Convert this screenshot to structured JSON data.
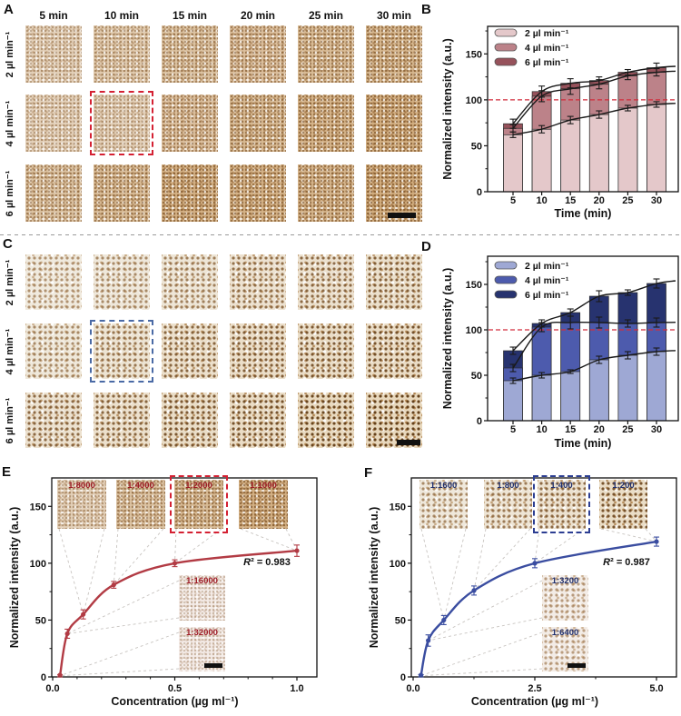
{
  "panels": {
    "a": "A",
    "b": "B",
    "c": "C",
    "d": "D",
    "e": "E",
    "f": "F"
  },
  "panel_a": {
    "col_headers": [
      "5 min",
      "10 min",
      "15 min",
      "20 min",
      "25 min",
      "30 min"
    ],
    "row_labels": [
      "2 µl min⁻¹",
      "4 µl min⁻¹",
      "6 µl min⁻¹"
    ],
    "tile_densities": [
      [
        0.3,
        0.38,
        0.5,
        0.55,
        0.6,
        0.68
      ],
      [
        0.28,
        0.3,
        0.55,
        0.65,
        0.72,
        0.8
      ],
      [
        0.5,
        0.6,
        0.78,
        0.75,
        0.7,
        0.82
      ]
    ],
    "highlight": {
      "row": 1,
      "col": 1,
      "color": "#d42133"
    },
    "texture": "fine"
  },
  "panel_c": {
    "col_headers": [],
    "row_labels": [
      "2 µl min⁻¹",
      "4 µl min⁻¹",
      "6 µl min⁻¹"
    ],
    "tile_densities": [
      [
        0.18,
        0.25,
        0.35,
        0.5,
        0.55,
        0.62
      ],
      [
        0.28,
        0.45,
        0.6,
        0.68,
        0.72,
        0.78
      ],
      [
        0.55,
        0.6,
        0.72,
        0.78,
        0.88,
        0.95
      ]
    ],
    "highlight": {
      "row": 1,
      "col": 1,
      "color": "#4a6aa5"
    },
    "texture": "dots"
  },
  "chart_data": [
    {
      "id": "B",
      "type": "bar",
      "categories": [
        "5",
        "10",
        "15",
        "20",
        "25",
        "30"
      ],
      "xlabel": "Time (min)",
      "ylabel": "Normalized intensity (a.u.)",
      "yticks": [
        "0",
        "50",
        "100",
        "150"
      ],
      "ytick_vals": [
        0,
        50,
        100,
        150
      ],
      "ylim": [
        0,
        180
      ],
      "ref_line": 100,
      "ref_color": "#d22c3c",
      "series": [
        {
          "name": "2 µl min⁻¹",
          "color": "#e4c8ca",
          "values": [
            62,
            68,
            78,
            84,
            91,
            95
          ],
          "errors": [
            3,
            4,
            4,
            4,
            3,
            3
          ]
        },
        {
          "name": "4 µl min⁻¹",
          "color": "#bc8289",
          "values": [
            69,
            104,
            112,
            117,
            126,
            130
          ],
          "errors": [
            4,
            6,
            6,
            5,
            4,
            4
          ]
        },
        {
          "name": "6 µl min⁻¹",
          "color": "#96525b",
          "values": [
            74,
            109,
            118,
            121,
            130,
            135
          ],
          "errors": [
            5,
            6,
            5,
            4,
            3,
            5
          ]
        }
      ],
      "legend_position": "top-left"
    },
    {
      "id": "D",
      "type": "bar",
      "categories": [
        "5",
        "10",
        "15",
        "20",
        "25",
        "30"
      ],
      "xlabel": "Time (min)",
      "ylabel": "Normalized intensity (a.u.)",
      "yticks": [
        "0",
        "50",
        "100",
        "150"
      ],
      "ytick_vals": [
        0,
        50,
        100,
        150
      ],
      "ylim": [
        0,
        181
      ],
      "ref_line": 100,
      "ref_color": "#d22c3c",
      "series": [
        {
          "name": "2 µl min⁻¹",
          "color": "#9ea8d4",
          "values": [
            44,
            50,
            54,
            67,
            72,
            76
          ],
          "errors": [
            3,
            3,
            2,
            4,
            4,
            4
          ]
        },
        {
          "name": "4 µl min⁻¹",
          "color": "#4d5bad",
          "values": [
            58,
            103,
            108,
            108,
            107,
            108
          ],
          "errors": [
            4,
            5,
            7,
            6,
            4,
            5
          ]
        },
        {
          "name": "6 µl min⁻¹",
          "color": "#27336f",
          "values": [
            77,
            107,
            119,
            137,
            141,
            151
          ],
          "errors": [
            4,
            4,
            4,
            6,
            3,
            5
          ]
        }
      ],
      "legend_position": "top-left"
    },
    {
      "id": "E",
      "type": "scatter",
      "x": [
        0.03,
        0.06,
        0.125,
        0.25,
        0.5,
        1.0
      ],
      "y": [
        1,
        38,
        55,
        81,
        100,
        111
      ],
      "errors": [
        1,
        4,
        4,
        3,
        3,
        5
      ],
      "color": "#b23b44",
      "r2": "R² = 0.983",
      "xlabel": "Concentration (µg ml⁻¹)",
      "ylabel": "Normalized intensity (a.u.)",
      "xticks": [
        "0.0",
        "0.5",
        "1.0"
      ],
      "xtick_vals": [
        0,
        0.5,
        1.0
      ],
      "yticks": [
        "0",
        "50",
        "100",
        "150"
      ],
      "ytick_vals": [
        0,
        50,
        100,
        150
      ],
      "ylim": [
        0,
        175
      ],
      "insets_top": [
        {
          "label": "1:8000",
          "density": 0.3
        },
        {
          "label": "1:4000",
          "density": 0.5
        },
        {
          "label": "1:2000",
          "density": 0.62
        },
        {
          "label": "1:1000",
          "density": 0.78
        }
      ],
      "insets_side": [
        {
          "label": "1:16000",
          "density": 0.1
        },
        {
          "label": "1:32000",
          "density": 0.05,
          "scalebar": true
        }
      ],
      "highlight_index": 2,
      "highlight_color": "#d42133",
      "label_color": "#9e1c26"
    },
    {
      "id": "F",
      "type": "scatter",
      "x": [
        0.16,
        0.31,
        0.63,
        1.25,
        2.5,
        5.0
      ],
      "y": [
        1,
        32,
        50,
        76,
        100,
        119
      ],
      "errors": [
        1,
        5,
        4,
        4,
        4,
        4
      ],
      "color": "#3a4da0",
      "r2": "R² = 0.987",
      "xlabel": "Concentration (µg ml⁻¹)",
      "ylabel": "Normalized intensity (a.u.)",
      "xticks": [
        "0.0",
        "2.5",
        "5.0"
      ],
      "xtick_vals": [
        0,
        2.5,
        5.0
      ],
      "yticks": [
        "0",
        "50",
        "100",
        "150"
      ],
      "ytick_vals": [
        0,
        50,
        100,
        150
      ],
      "ylim": [
        0,
        175
      ],
      "insets_top": [
        {
          "label": "1:1600",
          "density": 0.25
        },
        {
          "label": "1:800",
          "density": 0.4
        },
        {
          "label": "1:400",
          "density": 0.55
        },
        {
          "label": "1:200",
          "density": 0.75
        }
      ],
      "insets_side": [
        {
          "label": "1:3200",
          "density": 0.1
        },
        {
          "label": "1:6400",
          "density": 0.05,
          "scalebar": true
        }
      ],
      "highlight_index": 2,
      "highlight_color": "#2c3e92",
      "label_color": "#20306e"
    }
  ]
}
